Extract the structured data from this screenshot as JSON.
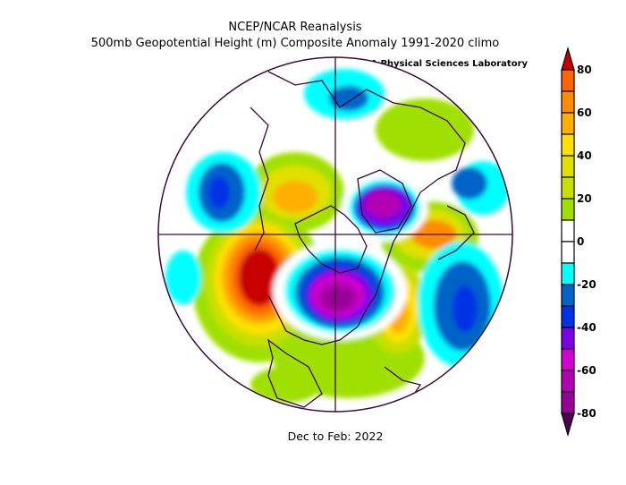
{
  "header": {
    "title": "NCEP/NCAR Reanalysis",
    "subtitle": "500mb Geopotential Height (m) Composite Anomaly 1991-2020 climo",
    "credit": "NOAA Physical Sciences Laboratory"
  },
  "caption": "Dec to Feb: 2022",
  "colorbar": {
    "labels": [
      "80",
      "60",
      "40",
      "20",
      "0",
      "-20",
      "-40",
      "-60",
      "-80"
    ],
    "over_color": "#c80000",
    "under_color": "#4b0050",
    "bins": [
      {
        "range": [
          70,
          80
        ],
        "color": "#ff6400"
      },
      {
        "range": [
          60,
          70
        ],
        "color": "#ff8c00"
      },
      {
        "range": [
          50,
          60
        ],
        "color": "#ffaf00"
      },
      {
        "range": [
          40,
          50
        ],
        "color": "#ffe000"
      },
      {
        "range": [
          30,
          40
        ],
        "color": "#e0e000"
      },
      {
        "range": [
          20,
          30
        ],
        "color": "#c8e000"
      },
      {
        "range": [
          10,
          20
        ],
        "color": "#a0e000"
      },
      {
        "range": [
          0,
          10
        ],
        "color": "#ffffff"
      },
      {
        "range": [
          -10,
          0
        ],
        "color": "#ffffff"
      },
      {
        "range": [
          -20,
          -10
        ],
        "color": "#00ffff"
      },
      {
        "range": [
          -30,
          -20
        ],
        "color": "#0064c8"
      },
      {
        "range": [
          -40,
          -30
        ],
        "color": "#0032e6"
      },
      {
        "range": [
          -50,
          -40
        ],
        "color": "#7d00e6"
      },
      {
        "range": [
          -60,
          -50
        ],
        "color": "#d200d2"
      },
      {
        "range": [
          -70,
          -60
        ],
        "color": "#b400b4"
      },
      {
        "range": [
          -80,
          -70
        ],
        "color": "#960096"
      }
    ]
  }
}
